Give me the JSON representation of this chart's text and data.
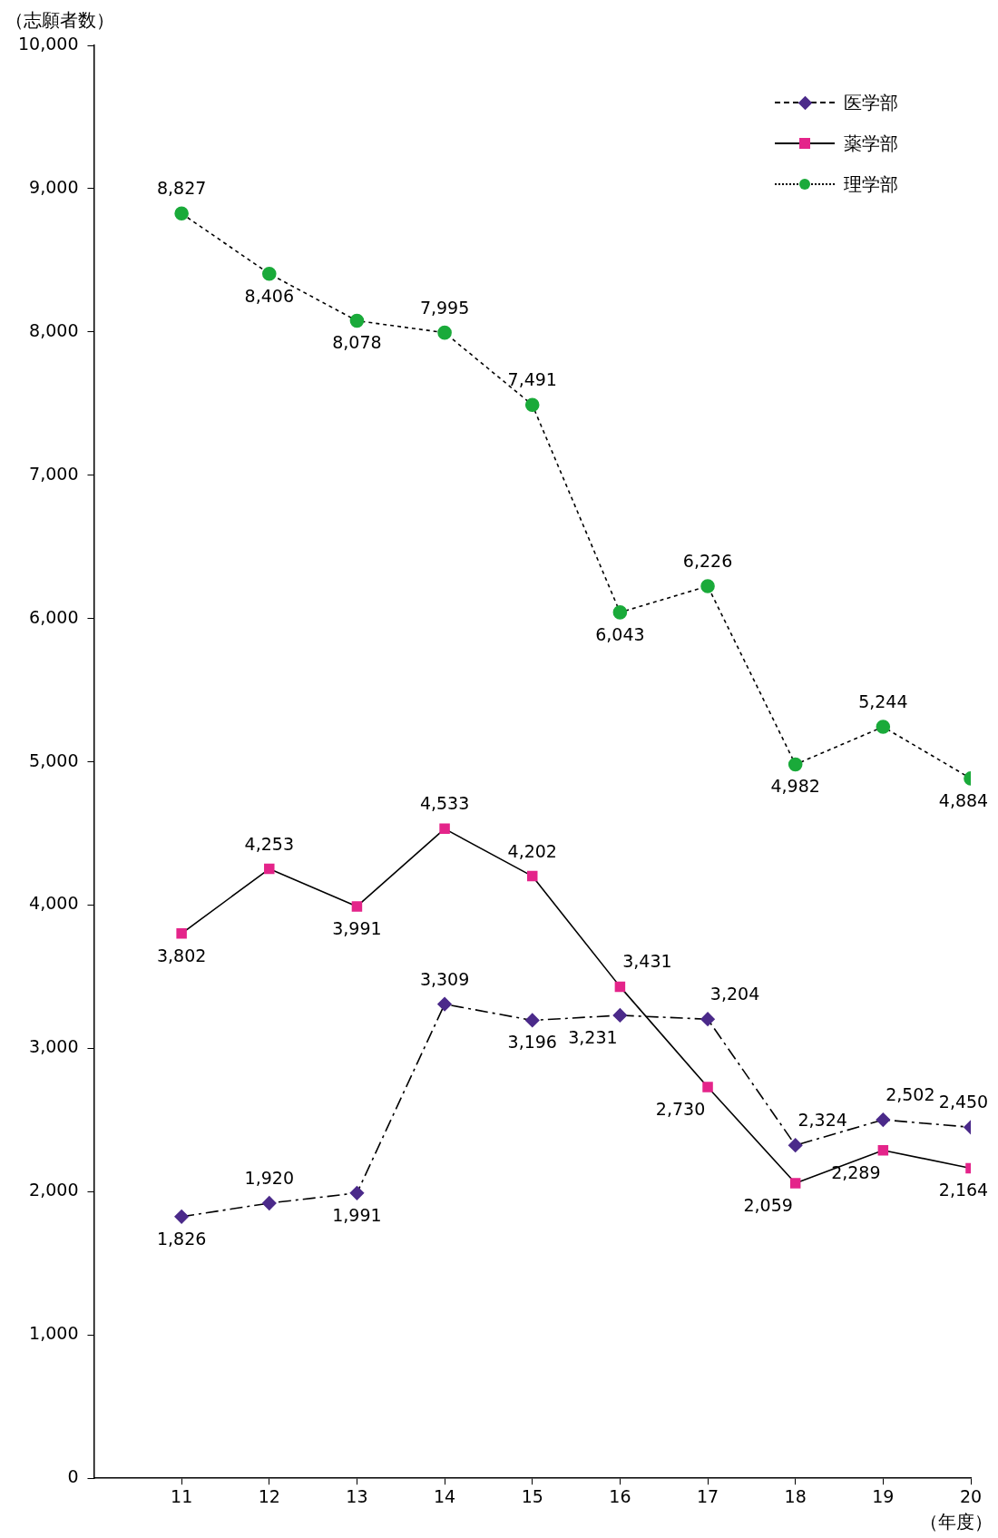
{
  "chart_data": {
    "type": "line",
    "ylabel": "（志願者数）",
    "xlabel": "（年度）",
    "x": [
      11,
      12,
      13,
      14,
      15,
      16,
      17,
      18,
      19,
      20
    ],
    "xlim": [
      10,
      20
    ],
    "xticks": [
      11,
      12,
      13,
      14,
      15,
      16,
      17,
      18,
      19,
      20
    ],
    "ylim": [
      0,
      10000
    ],
    "yticks": [
      0,
      {
        "value": 1000,
        "label": "1,000"
      },
      {
        "value": 2000,
        "label": "2,000"
      },
      {
        "value": 3000,
        "label": "3,000"
      },
      {
        "value": 4000,
        "label": "4,000"
      },
      {
        "value": 5000,
        "label": "5,000"
      },
      {
        "value": 6000,
        "label": "6,000"
      },
      {
        "value": 7000,
        "label": "7,000"
      },
      {
        "value": 8000,
        "label": "8,000"
      },
      {
        "value": 9000,
        "label": "9,000"
      },
      {
        "value": 10000,
        "label": "10,000"
      }
    ],
    "grid": false,
    "legend": "top right",
    "series": [
      {
        "name": "医学部",
        "color": "#4b2a8a",
        "marker": "diamond",
        "line_style": "dashed",
        "values": [
          1826,
          1920,
          1991,
          3309,
          3196,
          3231,
          3204,
          2324,
          2502,
          2450
        ],
        "value_labels": [
          "1,826",
          "1,920",
          "1,991",
          "3,309",
          "3,196",
          "3,231",
          "3,204",
          "2,324",
          "2,502",
          "2,450"
        ]
      },
      {
        "name": "薬学部",
        "color": "#e4248a",
        "marker": "square",
        "line_style": "solid",
        "values": [
          3802,
          4253,
          3991,
          4533,
          4202,
          3431,
          2730,
          2059,
          2289,
          2164
        ],
        "value_labels": [
          "3,802",
          "4,253",
          "3,991",
          "4,533",
          "4,202",
          "3,431",
          "2,730",
          "2,059",
          "2,289",
          "2,164"
        ]
      },
      {
        "name": "理学部",
        "color": "#1aaa3a",
        "marker": "circle",
        "line_style": "dotted",
        "values": [
          8827,
          8406,
          8078,
          7995,
          7491,
          6043,
          6226,
          4982,
          5244,
          4884
        ],
        "value_labels": [
          "8,827",
          "8,406",
          "8,078",
          "7,995",
          "7,491",
          "6,043",
          "6,226",
          "4,982",
          "5,244",
          "4,884"
        ]
      }
    ]
  }
}
